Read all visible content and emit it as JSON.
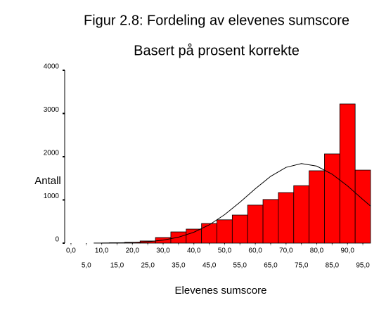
{
  "chart_data": {
    "type": "histogram",
    "title": "Figur 2.8: Fordeling av elevenes sumscore",
    "subtitle": "Basert på prosent korrekte",
    "ylabel": "Antall",
    "xlabel": "Elevenes sumscore",
    "bins": [
      -2.5,
      2.5,
      7.5,
      12.5,
      17.5,
      22.5,
      27.5,
      32.5,
      37.5,
      42.5,
      47.5,
      52.5,
      57.5,
      62.5,
      67.5,
      72.5,
      77.5,
      82.5,
      87.5,
      92.5,
      97.5
    ],
    "values": [
      0,
      0,
      3,
      10,
      20,
      50,
      130,
      260,
      325,
      455,
      540,
      650,
      880,
      1010,
      1170,
      1330,
      1675,
      2065,
      3220,
      1690
    ],
    "color": "#ff0000",
    "curve": {
      "x": [
        10,
        15,
        20,
        25,
        30,
        35,
        40,
        45,
        50,
        55,
        60,
        65,
        70,
        75,
        80,
        85,
        90,
        95,
        97.5
      ],
      "y": [
        2,
        6,
        14,
        33,
        70,
        138,
        252,
        423,
        658,
        946,
        1258,
        1546,
        1753,
        1840,
        1782,
        1595,
        1325,
        1010,
        857
      ]
    },
    "xlim": [
      -2.5,
      97.5
    ],
    "ylim": [
      0,
      4000
    ],
    "yticks": [
      0,
      1000,
      2000,
      3000,
      4000
    ],
    "xticks": [
      {
        "value": 0,
        "label": "0,0"
      },
      {
        "value": 5,
        "label": "5,0"
      },
      {
        "value": 10,
        "label": "10,0"
      },
      {
        "value": 15,
        "label": "15,0"
      },
      {
        "value": 20,
        "label": "20,0"
      },
      {
        "value": 25,
        "label": "25,0"
      },
      {
        "value": 30,
        "label": "30,0"
      },
      {
        "value": 35,
        "label": "35,0"
      },
      {
        "value": 40,
        "label": "40,0"
      },
      {
        "value": 45,
        "label": "45,0"
      },
      {
        "value": 50,
        "label": "50,0"
      },
      {
        "value": 55,
        "label": "55,0"
      },
      {
        "value": 60,
        "label": "60,0"
      },
      {
        "value": 65,
        "label": "65,0"
      },
      {
        "value": 70,
        "label": "70,0"
      },
      {
        "value": 75,
        "label": "75,0"
      },
      {
        "value": 80,
        "label": "80,0"
      },
      {
        "value": 85,
        "label": "85,0"
      },
      {
        "value": 90,
        "label": "90,0"
      },
      {
        "value": 95,
        "label": "95,0"
      }
    ]
  }
}
